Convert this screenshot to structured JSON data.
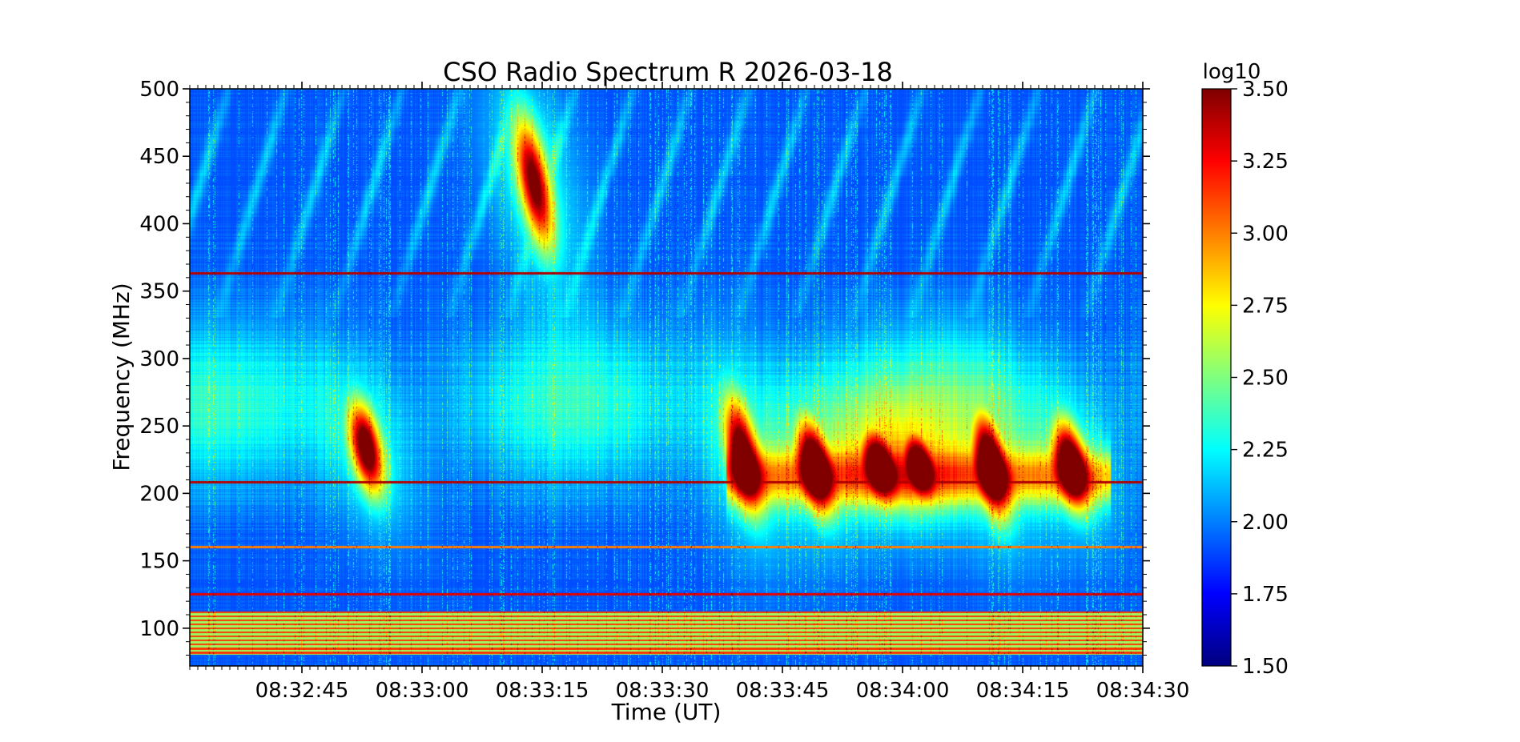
{
  "chart_data": {
    "type": "heatmap",
    "title": "CSO Radio Spectrum R 2026-03-18",
    "xlabel": "Time (UT)",
    "ylabel": "Frequency (MHz)",
    "x_range": [
      "08:32:31",
      "08:34:30"
    ],
    "x_ticks": [
      "08:32:45",
      "08:33:00",
      "08:33:15",
      "08:33:30",
      "08:33:45",
      "08:34:00",
      "08:34:15",
      "08:34:30"
    ],
    "y_range": [
      72,
      500
    ],
    "y_ticks": [
      100,
      150,
      200,
      250,
      300,
      350,
      400,
      450,
      500
    ],
    "colorbar": {
      "title": "log10",
      "range": [
        1.5,
        3.5
      ],
      "ticks": [
        "1.50",
        "1.75",
        "2.00",
        "2.25",
        "2.50",
        "2.75",
        "3.00",
        "3.25",
        "3.50"
      ],
      "colormap": "jet"
    },
    "background_level": 1.9,
    "bursts": [
      {
        "time": "08:32:53",
        "freq_low": 205,
        "freq_high": 262,
        "peak": 3.45
      },
      {
        "time": "08:33:14",
        "freq_low": 390,
        "freq_high": 470,
        "peak": 3.3
      },
      {
        "time": "08:33:40",
        "freq_low": 195,
        "freq_high": 265,
        "peak": 3.35
      },
      {
        "time": "08:33:49",
        "freq_low": 192,
        "freq_high": 250,
        "peak": 3.45
      },
      {
        "time": "08:33:57",
        "freq_low": 200,
        "freq_high": 245,
        "peak": 3.2
      },
      {
        "time": "08:34:02",
        "freq_low": 200,
        "freq_high": 245,
        "peak": 3.2
      },
      {
        "time": "08:34:11",
        "freq_low": 190,
        "freq_high": 255,
        "peak": 3.5
      },
      {
        "time": "08:34:21",
        "freq_low": 195,
        "freq_high": 250,
        "peak": 3.4
      }
    ],
    "interference_bands": [
      {
        "freq_low": 80,
        "freq_high": 112,
        "level": 3.15
      },
      {
        "freq": 363,
        "level": 3.4
      },
      {
        "freq": 208,
        "level": 3.4
      },
      {
        "freq": 125,
        "level": 3.3
      },
      {
        "freq": 160,
        "level": 3.0
      }
    ]
  }
}
